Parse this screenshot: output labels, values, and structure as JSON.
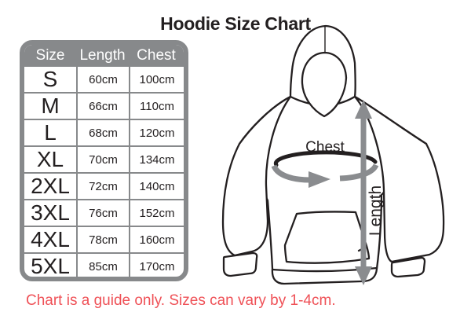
{
  "title": "Hoodie Size Chart",
  "table": {
    "headers": [
      "Size",
      "Length",
      "Chest"
    ],
    "rows": [
      [
        "S",
        "60cm",
        "100cm"
      ],
      [
        "M",
        "66cm",
        "110cm"
      ],
      [
        "L",
        "68cm",
        "120cm"
      ],
      [
        "XL",
        "70cm",
        "134cm"
      ],
      [
        "2XL",
        "72cm",
        "140cm"
      ],
      [
        "3XL",
        "76cm",
        "152cm"
      ],
      [
        "4XL",
        "78cm",
        "160cm"
      ],
      [
        "5XL",
        "85cm",
        "170cm"
      ]
    ]
  },
  "diagram": {
    "chest_label": "Chest",
    "length_label": "Length"
  },
  "note": "Chart is a guide only. Sizes can vary by 1-4cm.",
  "colors": {
    "table_gray": "#87898B",
    "arrow_gray": "#8A8C8F",
    "outline_black": "#231F20",
    "note_red": "#EF5157",
    "header_text": "#FFFFFF"
  },
  "chart_data": {
    "type": "table",
    "title": "Hoodie Size Chart",
    "columns": [
      "Size",
      "Length",
      "Chest"
    ],
    "rows": [
      [
        "S",
        "60cm",
        "100cm"
      ],
      [
        "M",
        "66cm",
        "110cm"
      ],
      [
        "L",
        "68cm",
        "120cm"
      ],
      [
        "XL",
        "70cm",
        "134cm"
      ],
      [
        "2XL",
        "72cm",
        "140cm"
      ],
      [
        "3XL",
        "76cm",
        "152cm"
      ],
      [
        "4XL",
        "78cm",
        "160cm"
      ],
      [
        "5XL",
        "85cm",
        "170cm"
      ]
    ],
    "units": "cm",
    "note": "Chart is a guide only. Sizes can vary by 1-4cm."
  }
}
